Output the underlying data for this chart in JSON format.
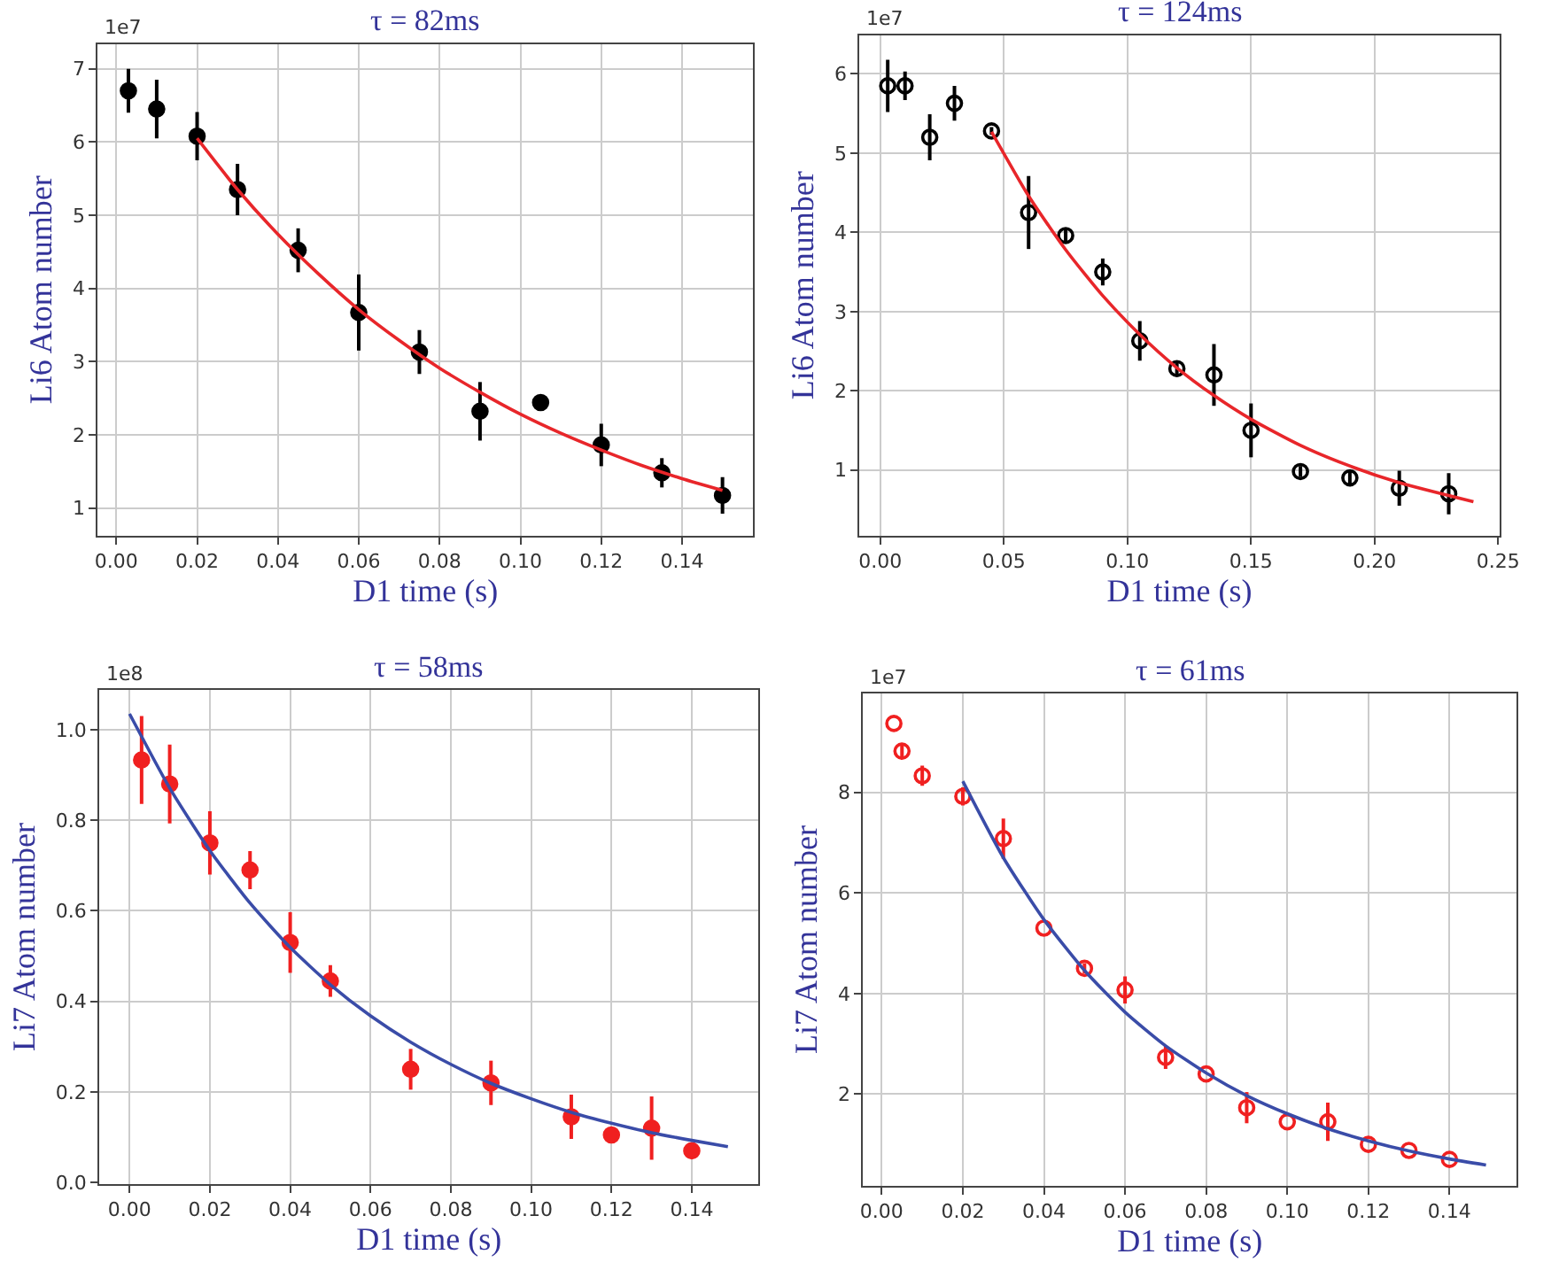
{
  "chart_data": [
    {
      "type": "scatter",
      "title": "τ = 82ms",
      "xlabel": "D1 time (s)",
      "ylabel": "Li6 Atom number",
      "annotations": [
        "1e7"
      ],
      "grid": true,
      "xlim": [
        -0.0046,
        0.1576
      ],
      "xticks": [
        {
          "value": 0,
          "label": "0.00"
        },
        0.02,
        0.04,
        0.06,
        0.08,
        {
          "value": 0.1,
          "label": "0.10"
        },
        0.12,
        0.14
      ],
      "ylim": [
        0.62,
        7.34
      ],
      "yticks": [
        1,
        2,
        3,
        4,
        5,
        6,
        7
      ],
      "series": [
        {
          "marker": "circle",
          "color": "#000000",
          "x": [
            0.003,
            0.01,
            0.02,
            0.03,
            0.045,
            0.06,
            0.075,
            0.09,
            0.105,
            0.12,
            0.135,
            0.15
          ],
          "values": [
            6.7,
            6.45,
            6.08,
            5.35,
            4.52,
            3.67,
            3.13,
            2.32,
            2.44,
            1.86,
            1.48,
            1.17
          ],
          "errors": [
            0.3,
            0.4,
            0.33,
            0.35,
            0.3,
            0.52,
            0.3,
            0.4,
            null,
            0.29,
            0.2,
            0.25
          ]
        },
        {
          "type": "line",
          "color": "#e8262a",
          "x": [
            0.02,
            0.03,
            0.04,
            0.05,
            0.06,
            0.07,
            0.08,
            0.09,
            0.1,
            0.11,
            0.12,
            0.13,
            0.14,
            0.15
          ],
          "values": [
            6.05,
            5.35,
            4.74,
            4.2,
            3.71,
            3.29,
            2.91,
            2.58,
            2.28,
            2.02,
            1.79,
            1.58,
            1.4,
            1.24
          ]
        }
      ]
    },
    {
      "type": "scatter",
      "title": "τ = 124ms",
      "xlabel": "D1 time (s)",
      "ylabel": "Li6 Atom number",
      "annotations": [
        "1e7"
      ],
      "grid": true,
      "xlim": [
        -0.0084,
        0.2505
      ],
      "xticks": [
        {
          "value": 0,
          "label": "0.00"
        },
        0.05,
        {
          "value": 0.1,
          "label": "0.10"
        },
        0.15,
        {
          "value": 0.2,
          "label": "0.20"
        },
        0.25
      ],
      "ylim": [
        0.17,
        6.49
      ],
      "yticks": [
        1,
        2,
        3,
        4,
        5,
        6
      ],
      "series": [
        {
          "color": "#000000",
          "marker": "circle-open",
          "x": [
            0.003,
            0.01,
            0.02,
            0.03,
            0.045,
            0.06,
            0.075,
            0.09,
            0.105,
            0.12,
            0.135,
            0.15,
            0.17,
            0.19,
            0.21,
            0.23
          ],
          "values": [
            5.85,
            5.85,
            5.2,
            5.63,
            5.28,
            4.25,
            3.96,
            3.5,
            2.63,
            2.28,
            2.2,
            1.5,
            0.98,
            0.9,
            0.77,
            0.7
          ],
          "errors": [
            0.33,
            0.18,
            0.29,
            0.22,
            0.05,
            0.46,
            0.08,
            0.17,
            0.25,
            0.1,
            0.39,
            0.34,
            0.07,
            0.1,
            0.22,
            0.26
          ]
        },
        {
          "type": "line",
          "color": "#e8262a",
          "x": [
            0.045,
            0.06,
            0.075,
            0.09,
            0.105,
            0.12,
            0.135,
            0.15,
            0.17,
            0.19,
            0.21,
            0.24
          ],
          "values": [
            5.27,
            4.46,
            3.78,
            3.2,
            2.71,
            2.29,
            1.94,
            1.64,
            1.31,
            1.05,
            0.84,
            0.6
          ]
        }
      ]
    },
    {
      "type": "scatter",
      "title": "τ = 58ms",
      "xlabel": "D1 time (s)",
      "ylabel": "Li7 Atom number",
      "annotations": [
        "1e8"
      ],
      "grid": true,
      "xlim": [
        -0.0075,
        0.1566
      ],
      "xticks": [
        {
          "value": 0,
          "label": "0.00"
        },
        0.02,
        0.04,
        0.06,
        0.08,
        {
          "value": 0.1,
          "label": "0.10"
        },
        0.12,
        0.14
      ],
      "ylim": [
        -0.003,
        1.087
      ],
      "yticks": [
        {
          "value": 0,
          "label": "0.0"
        },
        0.2,
        0.4,
        0.6,
        0.8,
        {
          "value": 1,
          "label": "1.0"
        }
      ],
      "series": [
        {
          "marker": "circle",
          "color": "#f02020",
          "x": [
            0.003,
            0.01,
            0.02,
            0.03,
            0.04,
            0.05,
            0.07,
            0.09,
            0.11,
            0.12,
            0.13,
            0.14
          ],
          "values": [
            0.933,
            0.88,
            0.75,
            0.69,
            0.53,
            0.445,
            0.25,
            0.22,
            0.145,
            0.105,
            0.12,
            0.07
          ],
          "errors": [
            0.097,
            0.087,
            0.07,
            0.042,
            0.067,
            0.035,
            0.045,
            0.049,
            0.049,
            null,
            0.07,
            null
          ]
        },
        {
          "type": "line",
          "color": "#3a4ca8",
          "x": [
            0,
            0.01,
            0.02,
            0.03,
            0.04,
            0.05,
            0.06,
            0.07,
            0.08,
            0.09,
            0.1,
            0.11,
            0.12,
            0.13,
            0.14,
            0.149
          ],
          "values": [
            1.035,
            0.871,
            0.733,
            0.617,
            0.519,
            0.437,
            0.368,
            0.31,
            0.261,
            0.219,
            0.185,
            0.155,
            0.131,
            0.11,
            0.093,
            0.079
          ]
        }
      ]
    },
    {
      "type": "scatter",
      "title": "τ = 61ms",
      "xlabel": "D1 time (s)",
      "ylabel": "Li7 Atom number",
      "annotations": [
        "1e7"
      ],
      "grid": true,
      "xlim": [
        -0.0046,
        0.1566
      ],
      "xticks": [
        {
          "value": 0,
          "label": "0.00"
        },
        0.02,
        0.04,
        0.06,
        0.08,
        {
          "value": 0.1,
          "label": "0.10"
        },
        0.12,
        0.14
      ],
      "ylim": [
        0.18,
        9.96
      ],
      "yticks": [
        2,
        4,
        6,
        8
      ],
      "series": [
        {
          "color": "#f02020",
          "marker": "circle-open",
          "x": [
            0.003,
            0.005,
            0.01,
            0.02,
            0.03,
            0.04,
            0.05,
            0.06,
            0.07,
            0.08,
            0.09,
            0.1,
            0.11,
            0.12,
            0.13,
            0.14
          ],
          "values": [
            9.37,
            8.82,
            8.33,
            7.92,
            7.08,
            5.3,
            4.5,
            4.07,
            2.73,
            2.4,
            1.73,
            1.45,
            1.45,
            1.0,
            0.88,
            0.7
          ],
          "errors": [
            null,
            0.15,
            0.2,
            0.18,
            0.4,
            null,
            0.1,
            0.27,
            0.23,
            null,
            0.31,
            null,
            0.38,
            null,
            null,
            null
          ]
        },
        {
          "type": "line",
          "color": "#3a4ca8",
          "x": [
            0.02,
            0.03,
            0.04,
            0.05,
            0.06,
            0.07,
            0.08,
            0.09,
            0.1,
            0.11,
            0.12,
            0.13,
            0.14,
            0.149
          ],
          "values": [
            8.22,
            6.7,
            5.47,
            4.46,
            3.63,
            2.96,
            2.42,
            1.97,
            1.61,
            1.31,
            1.07,
            0.87,
            0.71,
            0.59
          ]
        }
      ]
    }
  ]
}
